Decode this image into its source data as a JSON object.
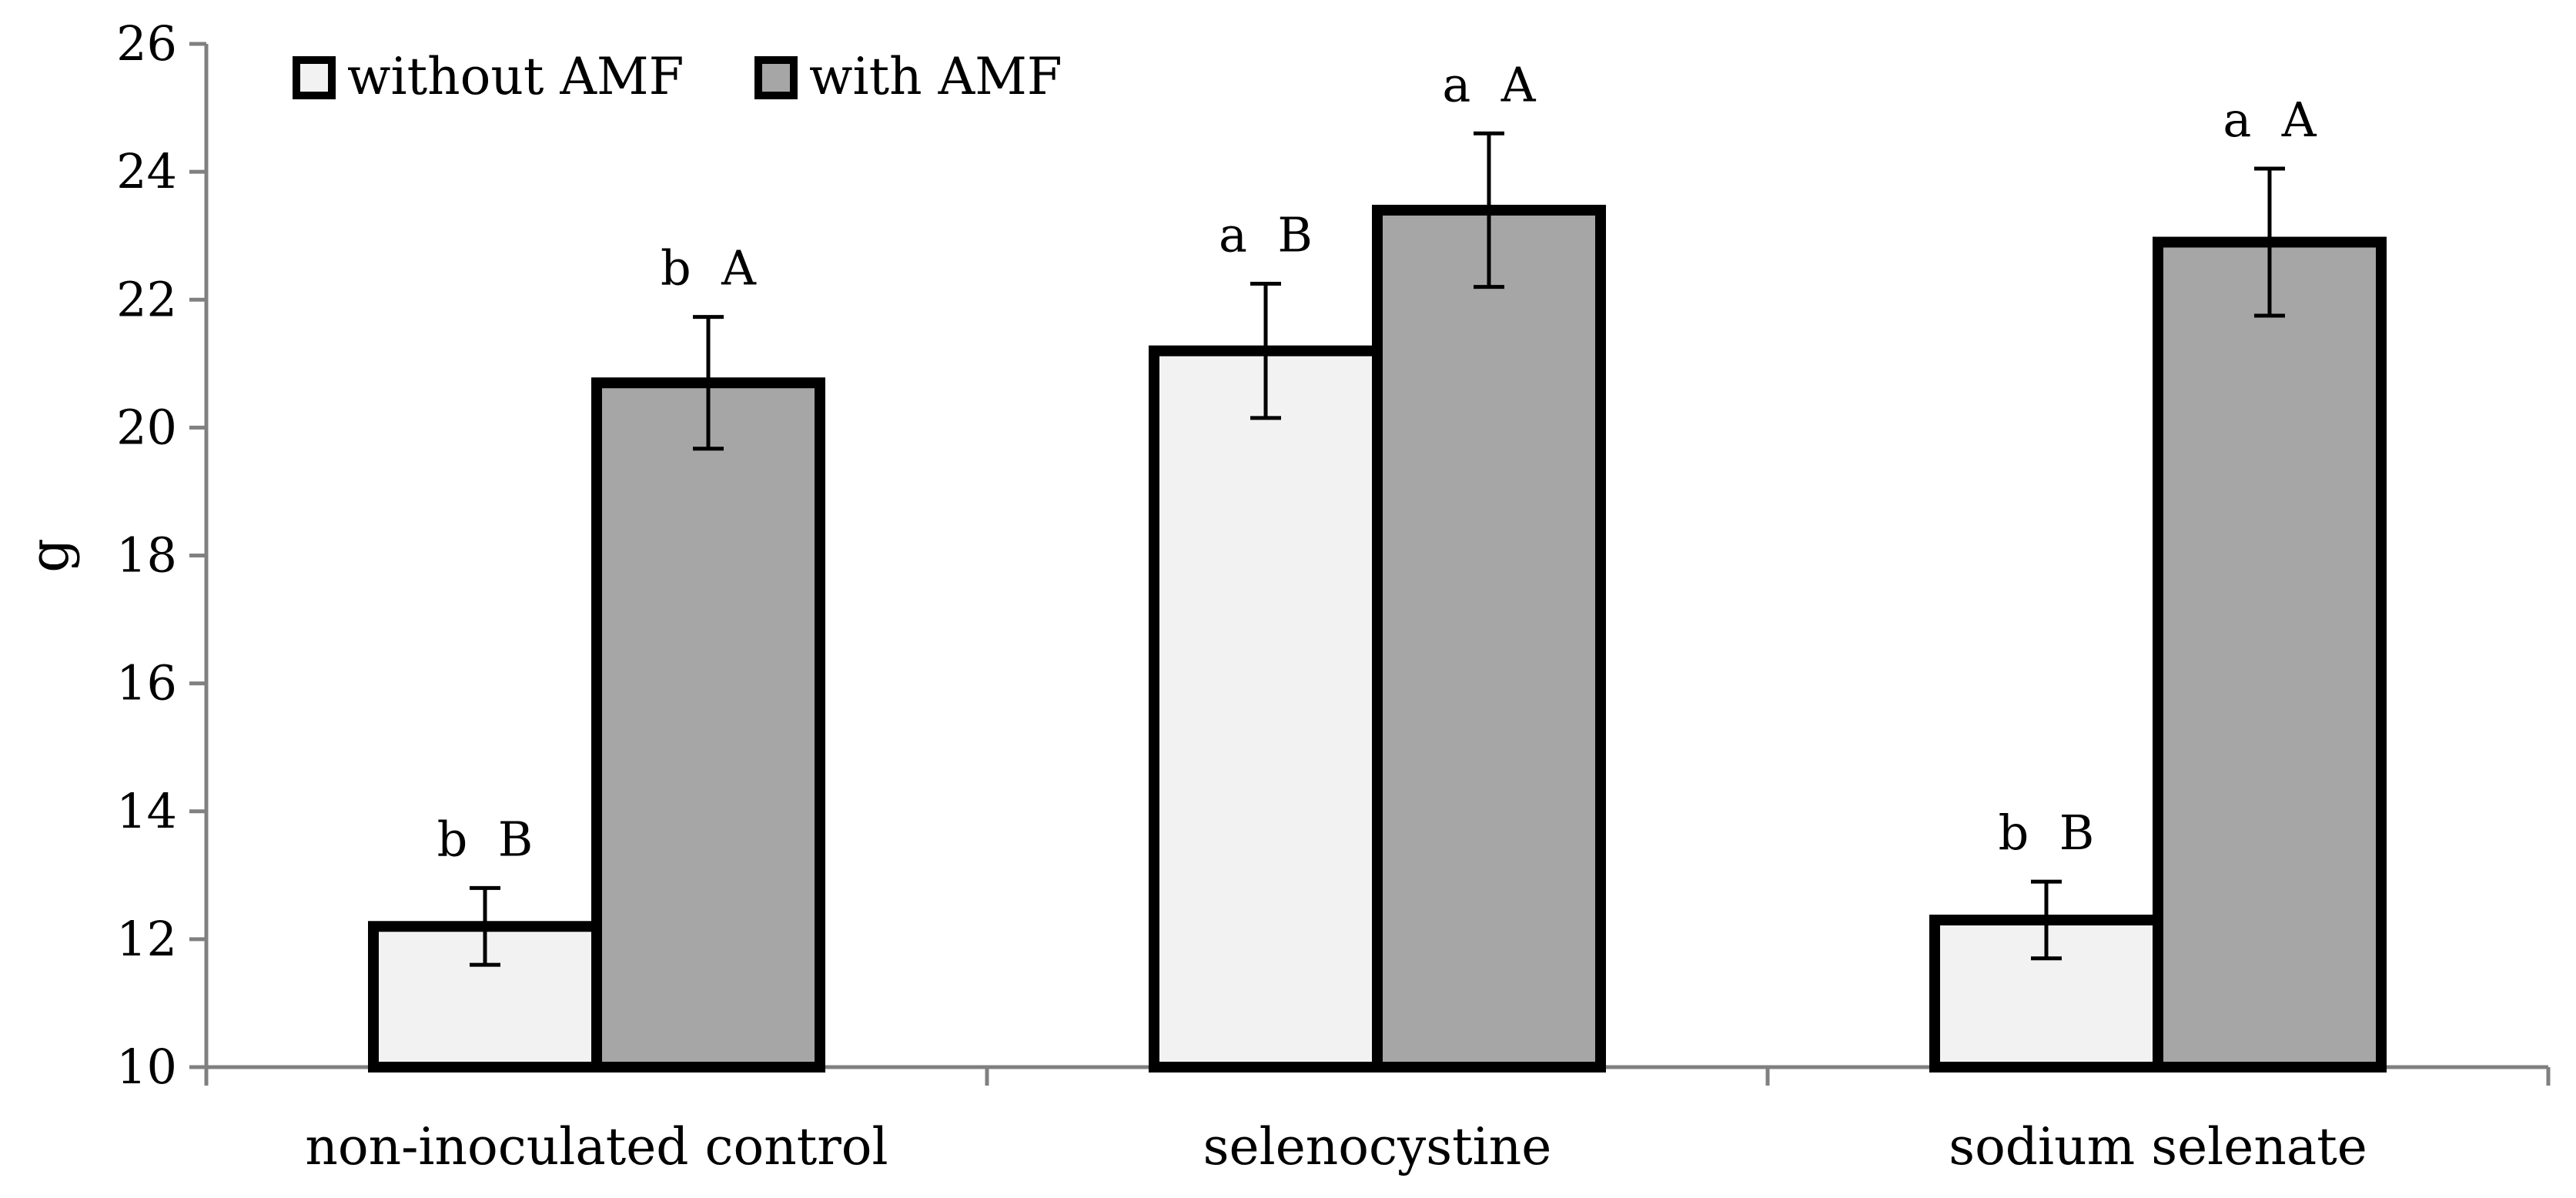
{
  "chart_data": {
    "type": "bar",
    "title": "",
    "xlabel": "",
    "ylabel": "g",
    "ylim": [
      10,
      26
    ],
    "yticks": [
      10,
      12,
      14,
      16,
      18,
      20,
      22,
      24,
      26
    ],
    "grid": false,
    "legend_position": "top-left",
    "categories": [
      "non-inoculated control",
      "selenocystine",
      "sodium selenate"
    ],
    "series": [
      {
        "name": "without AMF",
        "color": "#f2f2f2",
        "values": [
          12.2,
          21.2,
          12.3
        ],
        "errors": [
          0.6,
          1.05,
          0.6
        ],
        "labels": [
          "b  B",
          "a  B",
          "b  B"
        ]
      },
      {
        "name": "with AMF",
        "color": "#a6a6a6",
        "values": [
          20.7,
          23.4,
          22.9
        ],
        "errors": [
          1.03,
          1.2,
          1.15
        ],
        "labels": [
          "b  A",
          "a  A",
          "a  A"
        ]
      }
    ],
    "axis_color": "#808080",
    "bar_stroke": "#000000"
  }
}
